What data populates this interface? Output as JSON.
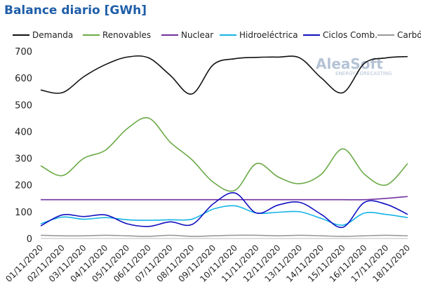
{
  "chart_data": {
    "type": "line",
    "title": "Balance diario [GWh]",
    "logo": {
      "name": "AleaSoft",
      "tagline": "ENERGY FORECASTING"
    },
    "categories": [
      "01/11/2020",
      "02/11/2020",
      "03/11/2020",
      "04/11/2020",
      "05/11/2020",
      "06/11/2020",
      "07/11/2020",
      "08/11/2020",
      "09/11/2020",
      "10/11/2020",
      "11/11/2020",
      "12/11/2020",
      "13/11/2020",
      "14/11/2020",
      "15/11/2020",
      "16/11/2020",
      "17/11/2020",
      "18/11/2020"
    ],
    "series": [
      {
        "name": "Demanda",
        "color": "#111111",
        "values": [
          555,
          545,
          605,
          650,
          678,
          675,
          610,
          540,
          650,
          672,
          677,
          678,
          675,
          600,
          545,
          655,
          675,
          680
        ]
      },
      {
        "name": "Renovables",
        "color": "#6aaa45",
        "values": [
          272,
          235,
          300,
          330,
          410,
          450,
          360,
          295,
          210,
          180,
          280,
          230,
          205,
          240,
          335,
          240,
          200,
          280
        ]
      },
      {
        "name": "Nuclear",
        "color": "#7030a0",
        "values": [
          145,
          145,
          145,
          145,
          145,
          145,
          145,
          145,
          145,
          145,
          145,
          145,
          145,
          145,
          145,
          145,
          150,
          157
        ]
      },
      {
        "name": "Hidroeléctrica",
        "color": "#14b4e6",
        "values": [
          55,
          80,
          72,
          78,
          70,
          68,
          70,
          72,
          110,
          122,
          95,
          98,
          100,
          75,
          50,
          95,
          90,
          78
        ]
      },
      {
        "name": "Ciclos Comb.",
        "color": "#1010c0",
        "values": [
          47,
          88,
          82,
          88,
          55,
          45,
          62,
          52,
          130,
          170,
          95,
          125,
          135,
          90,
          42,
          135,
          128,
          90
        ]
      },
      {
        "name": "Carbón",
        "color": "#999999",
        "values": [
          12,
          10,
          10,
          12,
          10,
          8,
          12,
          8,
          10,
          12,
          12,
          10,
          12,
          10,
          8,
          10,
          12,
          10
        ]
      }
    ],
    "ylim": [
      0,
      700
    ],
    "yticks": [
      0,
      100,
      200,
      300,
      400,
      500,
      600,
      700
    ],
    "grid": false,
    "legend": "top"
  }
}
